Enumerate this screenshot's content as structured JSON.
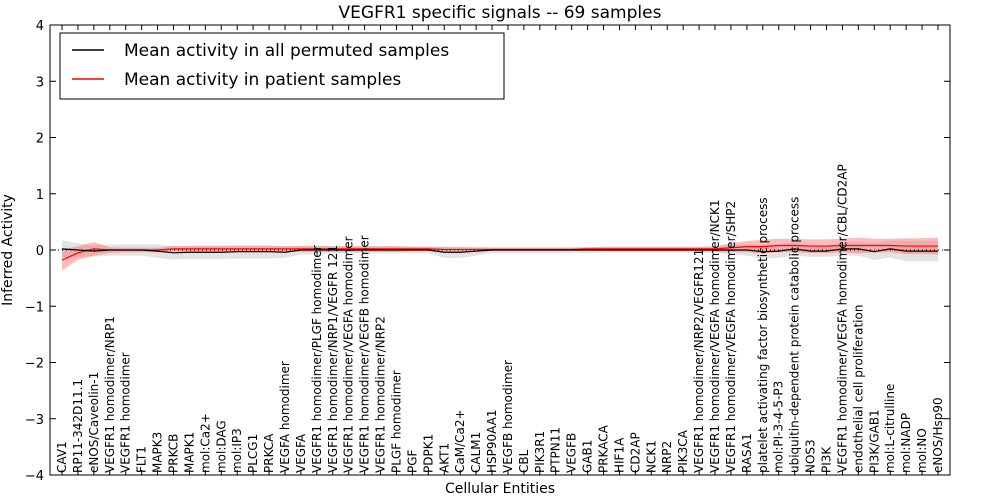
{
  "chart_data": {
    "type": "line",
    "title": "VEGFR1 specific signals -- 69 samples",
    "xlabel": "Cellular Entities",
    "ylabel": "Inferred Activity",
    "ylim": [
      -4,
      4
    ],
    "yticks": [
      "4",
      "3",
      "2",
      "1",
      "0",
      "−1",
      "−2",
      "−3",
      "−4"
    ],
    "grid": false,
    "legend_position": "top-left",
    "categories": [
      "CAV1",
      "RP11-342D11.1",
      "eNOS/Caveolin-1",
      "VEGFR1 homodimer/NRP1",
      "VEGFR1 homodimer",
      "FLT1",
      "MAPK3",
      "PRKCB",
      "MAPK1",
      "mol:Ca2+",
      "mol:DAG",
      "mol:IP3",
      "PLCG1",
      "PRKCA",
      "VEGFA homodimer",
      "VEGFA",
      "VEGFR1 homodimer/PLGF homodimer",
      "VEGFR1 homodimer/NRP1/VEGFR 121",
      "VEGFR1 homodimer/VEGFA homodimer",
      "VEGFR1 homodimer/VEGFB homodimer",
      "VEGFR1 homodimer/NRP2",
      "PLGF homodimer",
      "PGF",
      "PDPK1",
      "AKT1",
      "CaM/Ca2+",
      "CALM1",
      "HSP90AA1",
      "VEGFB homodimer",
      "CBL",
      "PIK3R1",
      "PTPN11",
      "VEGFB",
      "GAB1",
      "PRKACA",
      "HIF1A",
      "CD2AP",
      "NCK1",
      "NRP2",
      "PIK3CA",
      "VEGFR1 homodimer/NRP2/VEGFR121",
      "VEGFR1 homodimer/VEGFA homodimer/NCK1",
      "VEGFR1 homodimer/VEGFA homodimer/SHP2",
      "RASA1",
      "platelet activating factor biosynthetic process",
      "mol:PI-3-4-5-P3",
      "ubiquitin-dependent protein catabolic process",
      "NOS3",
      "PI3K",
      "VEGFR1 homodimer/VEGFA homodimer/CBL/CD2AP",
      "endothelial cell proliferation",
      "PI3K/GAB1",
      "mol:L-citrulline",
      "mol:NADP",
      "mol:NO",
      "eNOS/Hsp90"
    ],
    "series": [
      {
        "name": "Mean activity in all permuted samples",
        "color": "#000000",
        "values": [
          0.02,
          0.0,
          -0.02,
          0.0,
          0.0,
          0.0,
          -0.02,
          -0.05,
          -0.04,
          -0.04,
          -0.04,
          -0.03,
          -0.03,
          -0.03,
          -0.04,
          0.0,
          0.0,
          0.0,
          0.0,
          0.0,
          0.0,
          0.0,
          0.0,
          0.0,
          -0.04,
          -0.04,
          -0.02,
          0.0,
          0.0,
          0.0,
          0.0,
          0.0,
          0.0,
          0.0,
          0.0,
          0.0,
          0.0,
          0.0,
          0.0,
          0.0,
          0.0,
          0.0,
          0.0,
          0.0,
          -0.03,
          -0.02,
          0.02,
          -0.02,
          -0.02,
          0.02,
          0.02,
          -0.03,
          0.02,
          -0.02,
          -0.02,
          -0.02
        ],
        "band": [
          0.15,
          0.12,
          0.1,
          0.1,
          0.1,
          0.1,
          0.12,
          0.12,
          0.12,
          0.12,
          0.12,
          0.12,
          0.12,
          0.12,
          0.1,
          0.08,
          0.08,
          0.06,
          0.06,
          0.06,
          0.06,
          0.06,
          0.06,
          0.06,
          0.1,
          0.1,
          0.08,
          0.05,
          0.05,
          0.05,
          0.05,
          0.05,
          0.05,
          0.05,
          0.05,
          0.05,
          0.05,
          0.05,
          0.05,
          0.05,
          0.05,
          0.05,
          0.08,
          0.1,
          0.12,
          0.12,
          0.12,
          0.1,
          0.1,
          0.12,
          0.12,
          0.15,
          0.15,
          0.18,
          0.18,
          0.18
        ]
      },
      {
        "name": "Mean activity in patient samples",
        "color": "#ff0000",
        "values": [
          -0.18,
          -0.05,
          0.02,
          0.0,
          0.0,
          0.0,
          0.0,
          0.02,
          0.02,
          0.02,
          0.02,
          0.02,
          0.02,
          0.02,
          0.02,
          0.02,
          0.02,
          0.02,
          0.02,
          0.02,
          0.02,
          0.02,
          0.02,
          0.02,
          0.01,
          0.01,
          0.01,
          0.01,
          0.01,
          0.01,
          0.01,
          0.01,
          0.01,
          0.02,
          0.02,
          0.02,
          0.02,
          0.02,
          0.02,
          0.02,
          0.02,
          0.02,
          0.04,
          0.06,
          0.06,
          0.08,
          0.08,
          0.07,
          0.07,
          0.08,
          0.08,
          0.08,
          0.08,
          0.07,
          0.07,
          0.07
        ],
        "band": [
          0.18,
          0.12,
          0.12,
          0.05,
          0.04,
          0.04,
          0.04,
          0.05,
          0.05,
          0.05,
          0.05,
          0.05,
          0.05,
          0.05,
          0.05,
          0.05,
          0.05,
          0.05,
          0.05,
          0.05,
          0.05,
          0.05,
          0.04,
          0.04,
          0.04,
          0.04,
          0.03,
          0.03,
          0.03,
          0.03,
          0.03,
          0.03,
          0.03,
          0.03,
          0.04,
          0.04,
          0.04,
          0.04,
          0.04,
          0.04,
          0.04,
          0.05,
          0.08,
          0.1,
          0.12,
          0.12,
          0.12,
          0.12,
          0.12,
          0.12,
          0.14,
          0.12,
          0.12,
          0.14,
          0.14,
          0.15
        ]
      }
    ]
  }
}
